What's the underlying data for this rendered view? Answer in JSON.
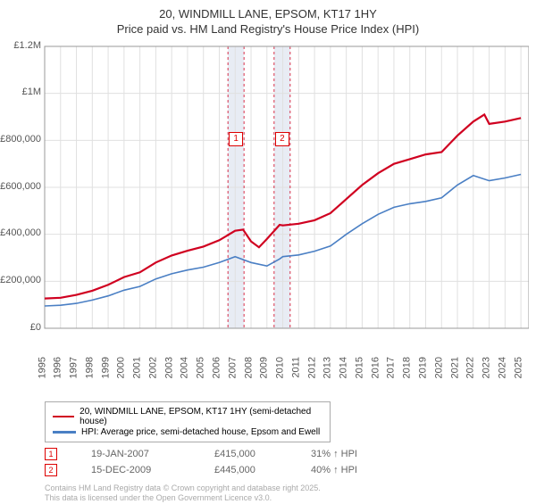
{
  "title1": "20, WINDMILL LANE, EPSOM, KT17 1HY",
  "title2": "Price paid vs. HM Land Registry's House Price Index (HPI)",
  "chart": {
    "type": "line",
    "x_min": 1995,
    "x_max": 2025.5,
    "y_min": 0,
    "y_max": 1200000,
    "y_ticks": [
      0,
      200000,
      400000,
      600000,
      800000,
      1000000,
      1200000
    ],
    "y_tick_labels": [
      "£0",
      "£200,000",
      "£400,000",
      "£600,000",
      "£800,000",
      "£1M",
      "£1.2M"
    ],
    "x_ticks": [
      1995,
      1996,
      1997,
      1998,
      1999,
      2000,
      2001,
      2002,
      2003,
      2004,
      2005,
      2006,
      2007,
      2008,
      2009,
      2010,
      2011,
      2012,
      2013,
      2014,
      2015,
      2016,
      2017,
      2018,
      2019,
      2020,
      2021,
      2022,
      2023,
      2024,
      2025
    ],
    "grid_color": "#e0e0e0",
    "series": [
      {
        "name": "property",
        "label": "20, WINDMILL LANE, EPSOM, KT17 1HY (semi-detached house)",
        "color": "#d00020",
        "width": 2.2,
        "data": [
          [
            1995,
            127000
          ],
          [
            1996,
            130000
          ],
          [
            1997,
            142000
          ],
          [
            1998,
            160000
          ],
          [
            1999,
            185000
          ],
          [
            2000,
            218000
          ],
          [
            2001,
            238000
          ],
          [
            2002,
            280000
          ],
          [
            2003,
            310000
          ],
          [
            2004,
            330000
          ],
          [
            2005,
            348000
          ],
          [
            2006,
            375000
          ],
          [
            2007,
            415000
          ],
          [
            2007.5,
            420000
          ],
          [
            2008,
            370000
          ],
          [
            2008.5,
            345000
          ],
          [
            2009,
            380000
          ],
          [
            2009.8,
            440000
          ],
          [
            2010,
            438000
          ],
          [
            2011,
            445000
          ],
          [
            2012,
            460000
          ],
          [
            2013,
            490000
          ],
          [
            2014,
            550000
          ],
          [
            2015,
            610000
          ],
          [
            2016,
            660000
          ],
          [
            2017,
            700000
          ],
          [
            2018,
            720000
          ],
          [
            2019,
            740000
          ],
          [
            2020,
            750000
          ],
          [
            2021,
            820000
          ],
          [
            2022,
            880000
          ],
          [
            2022.7,
            910000
          ],
          [
            2023,
            870000
          ],
          [
            2024,
            880000
          ],
          [
            2025,
            895000
          ]
        ]
      },
      {
        "name": "hpi",
        "label": "HPI: Average price, semi-detached house, Epsom and Ewell",
        "color": "#4a7fc4",
        "width": 1.6,
        "data": [
          [
            1995,
            95000
          ],
          [
            1996,
            98000
          ],
          [
            1997,
            106000
          ],
          [
            1998,
            120000
          ],
          [
            1999,
            138000
          ],
          [
            2000,
            162000
          ],
          [
            2001,
            178000
          ],
          [
            2002,
            210000
          ],
          [
            2003,
            232000
          ],
          [
            2004,
            248000
          ],
          [
            2005,
            260000
          ],
          [
            2006,
            280000
          ],
          [
            2007,
            305000
          ],
          [
            2008,
            280000
          ],
          [
            2009,
            265000
          ],
          [
            2009.8,
            295000
          ],
          [
            2010,
            305000
          ],
          [
            2011,
            312000
          ],
          [
            2012,
            328000
          ],
          [
            2013,
            350000
          ],
          [
            2014,
            400000
          ],
          [
            2015,
            445000
          ],
          [
            2016,
            485000
          ],
          [
            2017,
            515000
          ],
          [
            2018,
            530000
          ],
          [
            2019,
            540000
          ],
          [
            2020,
            555000
          ],
          [
            2021,
            610000
          ],
          [
            2022,
            650000
          ],
          [
            2023,
            628000
          ],
          [
            2024,
            640000
          ],
          [
            2025,
            655000
          ]
        ]
      }
    ],
    "shaded": [
      {
        "id": "1",
        "x": 2007.05,
        "color": "#e8ecf4",
        "dash_color": "#d00020"
      },
      {
        "id": "2",
        "x": 2009.96,
        "color": "#e8ecf4",
        "dash_color": "#d00020"
      }
    ]
  },
  "events": [
    {
      "id": "1",
      "date": "19-JAN-2007",
      "price": "£415,000",
      "delta": "31% ↑ HPI"
    },
    {
      "id": "2",
      "date": "15-DEC-2009",
      "price": "£445,000",
      "delta": "40% ↑ HPI"
    }
  ],
  "footer1": "Contains HM Land Registry data © Crown copyright and database right 2025.",
  "footer2": "This data is licensed under the Open Government Licence v3.0."
}
